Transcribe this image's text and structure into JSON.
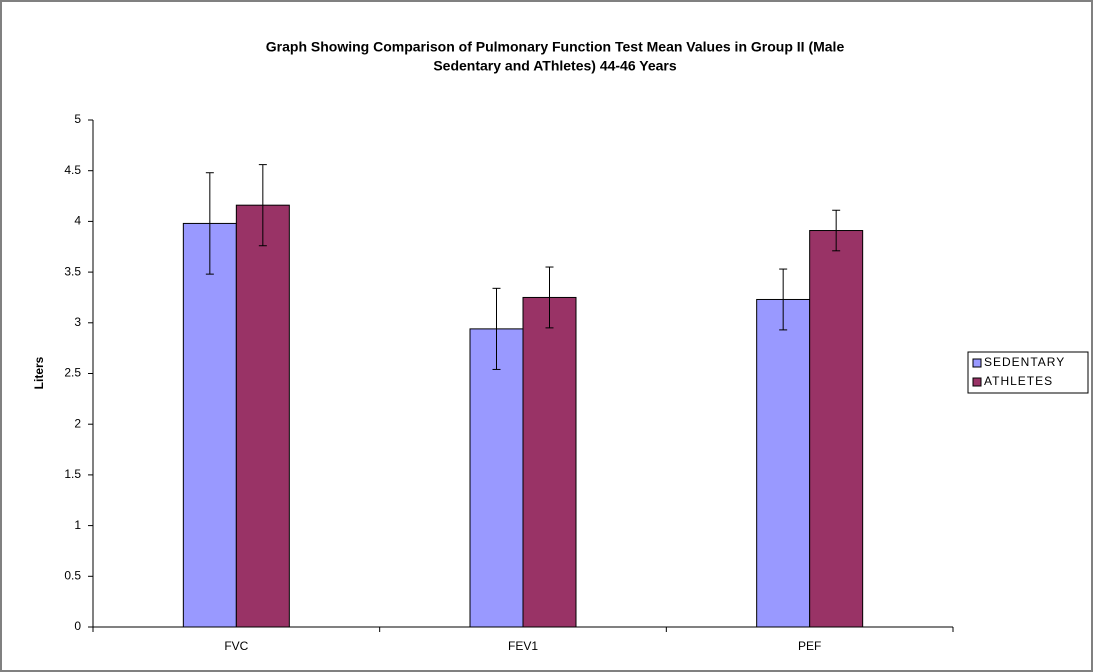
{
  "chart_data": {
    "type": "bar",
    "title": [
      "Graph Showing Comparison of Pulmonary Function Test Mean Values in Group II (Male",
      "Sedentary and AThletes) 44-46 Years"
    ],
    "y_label": "Liters",
    "categories": [
      "FVC",
      "FEV1",
      "PEF"
    ],
    "series": [
      {
        "name": "SEDENTARY",
        "color": "#9999ff",
        "values": [
          3.98,
          2.94,
          3.23
        ],
        "errors": [
          0.5,
          0.4,
          0.3
        ]
      },
      {
        "name": "ATHLETES",
        "color": "#993366",
        "values": [
          4.16,
          3.25,
          3.91
        ],
        "errors": [
          0.4,
          0.3,
          0.2
        ]
      }
    ],
    "ylim": [
      0,
      5
    ],
    "yticks": [
      0,
      0.5,
      1,
      1.5,
      2,
      2.5,
      3,
      3.5,
      4,
      4.5,
      5
    ],
    "grid": false,
    "legend": "right"
  }
}
